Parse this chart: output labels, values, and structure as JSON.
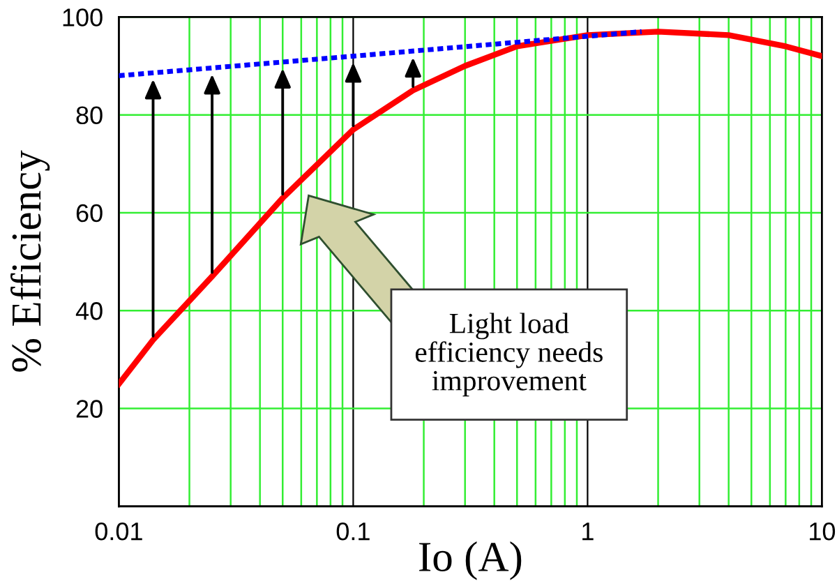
{
  "chart_data": {
    "type": "line",
    "xlabel": "Io (A)",
    "ylabel": "% Efficiency",
    "series": [
      {
        "color": "#ff0000",
        "line_style": "solid",
        "x": [
          0.01,
          0.014,
          0.025,
          0.05,
          0.1,
          0.18,
          0.3,
          0.5,
          1,
          2,
          4,
          7,
          10
        ],
        "values": [
          25,
          34,
          47,
          63,
          77,
          85,
          90,
          94,
          96.3,
          97,
          96.3,
          94,
          92
        ]
      },
      {
        "color": "#0000ff",
        "line_style": "dashed",
        "x": [
          0.01,
          0.1,
          1.7
        ],
        "values": [
          88,
          92,
          97
        ]
      }
    ],
    "annotations": [
      "Light load\nefficiency needs\nimprovement"
    ],
    "log": "x",
    "xlim": [
      0.01,
      10
    ],
    "xticks": [
      0.01,
      0.1,
      1,
      10
    ],
    "ylim": [
      0,
      100
    ],
    "yticks": [
      20,
      40,
      60,
      80,
      100
    ],
    "grid": true,
    "legend": false
  }
}
